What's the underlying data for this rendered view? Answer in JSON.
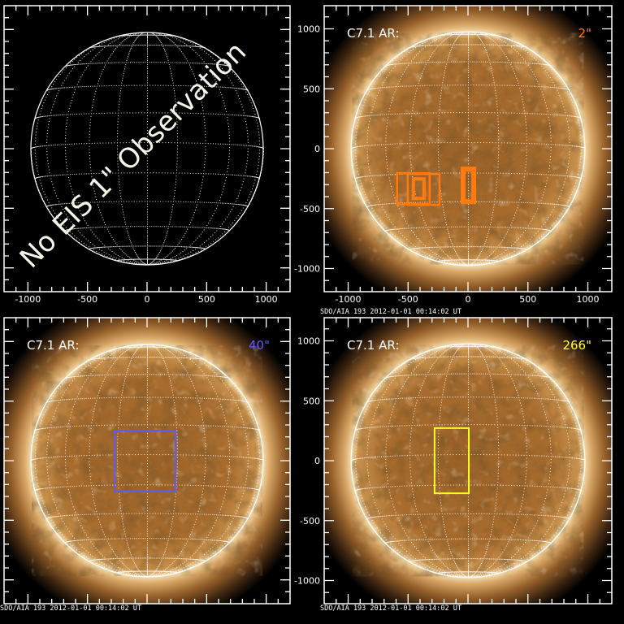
{
  "figure": {
    "axis_ticks": [
      -1000,
      -500,
      0,
      500,
      1000
    ],
    "axis_range": [
      -1200,
      1200
    ],
    "solar_radius_arcsec": 975,
    "colors": {
      "frame": "#ffffff",
      "disk_grid": "#ffffff",
      "corona_bright": "#f2dcae",
      "corona_mid": "#a86a2c",
      "background": "#000000"
    },
    "panels": [
      {
        "id": "top-left",
        "show_image": false,
        "overlay_text": "No EIS 1\" Observation",
        "overlay_color": "#f4f4e8",
        "show_x_labels": true,
        "show_y_labels": false,
        "ar_label": "",
        "resolution_label": "",
        "resolution_color": "",
        "footer": "",
        "boxes": []
      },
      {
        "id": "top-right",
        "show_image": true,
        "overlay_text": "",
        "show_x_labels": true,
        "show_y_labels": true,
        "ar_label": "C7.1 AR:",
        "resolution_label": "2\"",
        "resolution_color": "#ff7a10",
        "footer": "SDO/AIA 193  2012-01-01 00:14:02 UT",
        "boxes": [
          {
            "x0": -592,
            "x1": -320,
            "y0": -463,
            "y1": -204,
            "color": "#ff7a10",
            "width": 2.5
          },
          {
            "x0": -503,
            "x1": -238,
            "y0": -469,
            "y1": -211,
            "color": "#ff7a10",
            "width": 2.5
          },
          {
            "x0": -456,
            "x1": -367,
            "y0": -415,
            "y1": -252,
            "color": "#ff7a10",
            "width": 4
          },
          {
            "x0": -41,
            "x1": 48,
            "y0": -442,
            "y1": -170,
            "color": "#ff7a10",
            "width": 6
          }
        ]
      },
      {
        "id": "bottom-left",
        "show_image": true,
        "overlay_text": "",
        "show_x_labels": false,
        "show_y_labels": false,
        "ar_label": "C7.1 AR:",
        "resolution_label": "40\"",
        "resolution_color": "#5a5cff",
        "footer": "SDO/AIA 193  2012-01-01 00:14:02 UT",
        "boxes": [
          {
            "x0": -272,
            "x1": 238,
            "y0": -258,
            "y1": 252,
            "color": "#5a5cff",
            "width": 2
          }
        ]
      },
      {
        "id": "bottom-right",
        "show_image": true,
        "overlay_text": "",
        "show_x_labels": false,
        "show_y_labels": true,
        "ar_label": "C7.1 AR:",
        "resolution_label": "266\"",
        "resolution_color": "#ffff20",
        "footer": "SDO/AIA 193  2012-01-01 00:14:02 UT",
        "boxes": [
          {
            "x0": -279,
            "x1": 7,
            "y0": -272,
            "y1": 272,
            "color": "#ffff20",
            "width": 2
          }
        ]
      }
    ]
  }
}
